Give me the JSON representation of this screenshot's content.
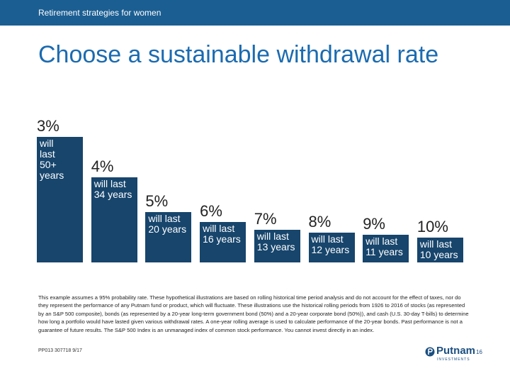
{
  "header": "Retirement strategies for women",
  "title": "Choose a sustainable withdrawal rate",
  "chart_data": {
    "type": "bar",
    "categories": [
      "3%",
      "4%",
      "5%",
      "6%",
      "7%",
      "8%",
      "9%",
      "10%"
    ],
    "values": [
      50,
      34,
      20,
      16,
      13,
      12,
      11,
      10
    ],
    "value_labels": [
      "will last 50+ years",
      "will last 34 years",
      "will last 20 years",
      "will last 16 years",
      "will last 13 years",
      "will last 12 years",
      "will last 11 years",
      "will last 10 years"
    ],
    "color": "#17456c"
  },
  "disclaimer": "This example assumes a 95% probability rate. These hypothetical illustrations are based on rolling historical time period analysis and do not account for the effect of taxes, nor do they represent the performance of any Putnam fund or product, which will fluctuate. These illustrations use the historical rolling periods from 1926 to 2016 of stocks (as represented by an S&P 500 composite), bonds (as represented by a 20-year long-term government bond (50%) and a 20-year corporate bond (50%)), and cash (U.S. 30-day T-bills) to determine how long a portfolio would have lasted given various withdrawal rates. A one-year rolling average is used to calculate performance of the 20-year bonds. Past performance is not a guarantee of future results. The S&P 500 Index is an unmanaged index of common stock performance. You cannot invest directly in an index.",
  "footer": {
    "code": "PP013 307718 9/17",
    "logo": "Putnam",
    "logo_sub": "INVESTMENTS",
    "page": "16"
  }
}
